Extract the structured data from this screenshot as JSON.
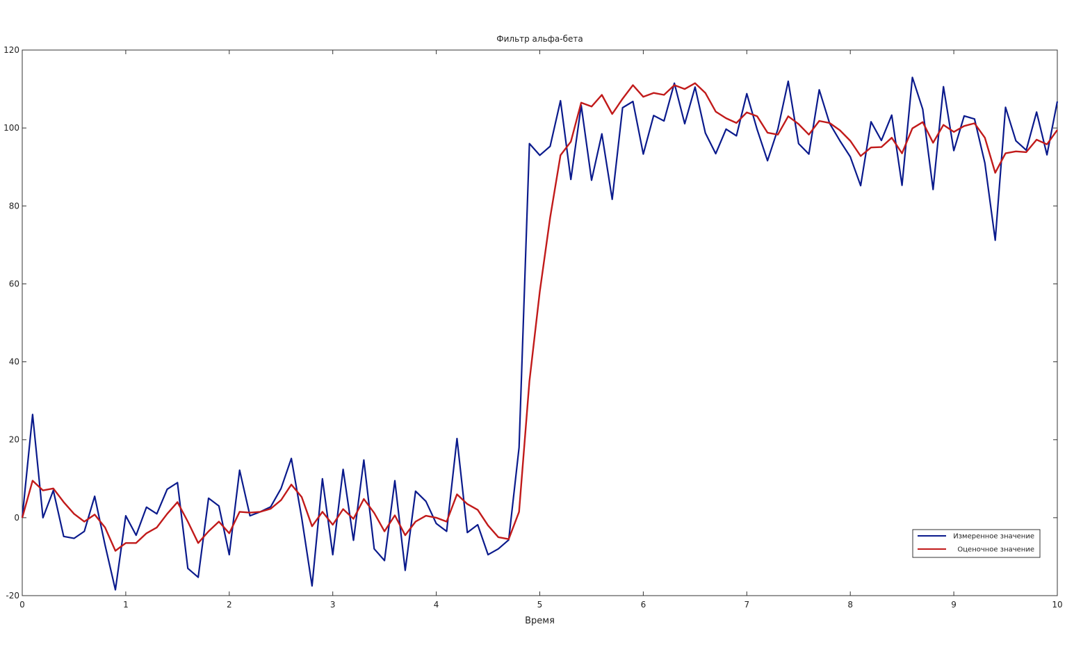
{
  "chart_data": {
    "type": "line",
    "title": "Фильтр альфа-бета",
    "xlabel": "Время",
    "ylabel": "",
    "xlim": [
      0,
      10
    ],
    "ylim": [
      -20,
      120
    ],
    "xticks": [
      0,
      1,
      2,
      3,
      4,
      5,
      6,
      7,
      8,
      9,
      10
    ],
    "yticks": [
      -20,
      0,
      20,
      40,
      60,
      80,
      100,
      120
    ],
    "grid": false,
    "legend_position": "bottom-right",
    "x": [
      0,
      0.1,
      0.2,
      0.3,
      0.4,
      0.5,
      0.6,
      0.7,
      0.8,
      0.9,
      1.0,
      1.1,
      1.2,
      1.3,
      1.4,
      1.5,
      1.6,
      1.7,
      1.8,
      1.9,
      2.0,
      2.1,
      2.2,
      2.3,
      2.4,
      2.5,
      2.6,
      2.7,
      2.8,
      2.9,
      3.0,
      3.1,
      3.2,
      3.3,
      3.4,
      3.5,
      3.6,
      3.7,
      3.8,
      3.9,
      4.0,
      4.1,
      4.2,
      4.3,
      4.4,
      4.5,
      4.6,
      4.7,
      4.8,
      4.9,
      5.0,
      5.1,
      5.2,
      5.3,
      5.4,
      5.5,
      5.6,
      5.7,
      5.8,
      5.9,
      6.0,
      6.1,
      6.2,
      6.3,
      6.4,
      6.5,
      6.6,
      6.7,
      6.8,
      6.9,
      7.0,
      7.1,
      7.2,
      7.3,
      7.4,
      7.5,
      7.6,
      7.7,
      7.8,
      7.9,
      8.0,
      8.1,
      8.2,
      8.3,
      8.4,
      8.5,
      8.6,
      8.7,
      8.8,
      8.9,
      9.0,
      9.1,
      9.2,
      9.3,
      9.4,
      9.5,
      9.6,
      9.7,
      9.8,
      9.9,
      10.0
    ],
    "series": [
      {
        "name": "Измеренное значение",
        "color": "#0a1a8c",
        "values": [
          0,
          26.5,
          0,
          7,
          -4.8,
          -5.3,
          -3.5,
          5.5,
          -7,
          -18.5,
          0.5,
          -4.5,
          2.7,
          1,
          7.3,
          9,
          -13,
          -15.3,
          5,
          3,
          -9.5,
          12.2,
          0.5,
          1.5,
          2.8,
          7.5,
          15.2,
          0,
          -17.5,
          10,
          -9.5,
          12.4,
          -5.8,
          14.8,
          -8,
          -11,
          9.5,
          -13.5,
          6.8,
          4.2,
          -1.5,
          -3.5,
          20.3,
          -3.8,
          -1.8,
          -9.5,
          -8,
          -5.7,
          18,
          96,
          93,
          95.3,
          107,
          86.8,
          105.8,
          86.6,
          98.5,
          81.7,
          105.2,
          106.8,
          93.3,
          103.2,
          101.8,
          111.5,
          101.1,
          110.5,
          98.7,
          93.4,
          99.7,
          98,
          108.8,
          99.6,
          91.6,
          99.7,
          112,
          96,
          93.3,
          109.8,
          101.2,
          96.7,
          92.6,
          85.2,
          101.6,
          96.8,
          103.3,
          85.3,
          113,
          104.8,
          84.2,
          110.6,
          94.2,
          103.1,
          102.3,
          91,
          71.2,
          105.3,
          96.7,
          94.3,
          104.1,
          93.1,
          106.8
        ]
      },
      {
        "name": "Оценочное значение",
        "color": "#c11a1a",
        "values": [
          0,
          9.5,
          7,
          7.5,
          4,
          1,
          -1,
          0.8,
          -2.5,
          -8.5,
          -6.5,
          -6.5,
          -4,
          -2.5,
          1,
          4,
          -1,
          -6.5,
          -3.5,
          -1,
          -4,
          1.5,
          1.3,
          1.5,
          2.3,
          4.5,
          8.5,
          5.3,
          -2.2,
          1.5,
          -1.8,
          2.2,
          -0.3,
          4.8,
          1.2,
          -3.5,
          0.6,
          -4.5,
          -1,
          0.5,
          0,
          -1,
          6,
          3.5,
          2,
          -2,
          -5,
          -5.5,
          1.5,
          35,
          58,
          77,
          93,
          96.5,
          106.5,
          105.5,
          108.5,
          103.6,
          107.5,
          111,
          108,
          109,
          108.5,
          111,
          110,
          111.5,
          109,
          104.2,
          102.5,
          101.3,
          104,
          103,
          98.8,
          98.3,
          103,
          101,
          98.3,
          101.8,
          101.3,
          99.4,
          96.7,
          92.8,
          95,
          95.1,
          97.5,
          93.5,
          99.9,
          101.5,
          96.2,
          100.8,
          99,
          100.5,
          101.2,
          97.5,
          88.5,
          93.5,
          94,
          93.8,
          97,
          95.8,
          99.5
        ]
      }
    ]
  }
}
